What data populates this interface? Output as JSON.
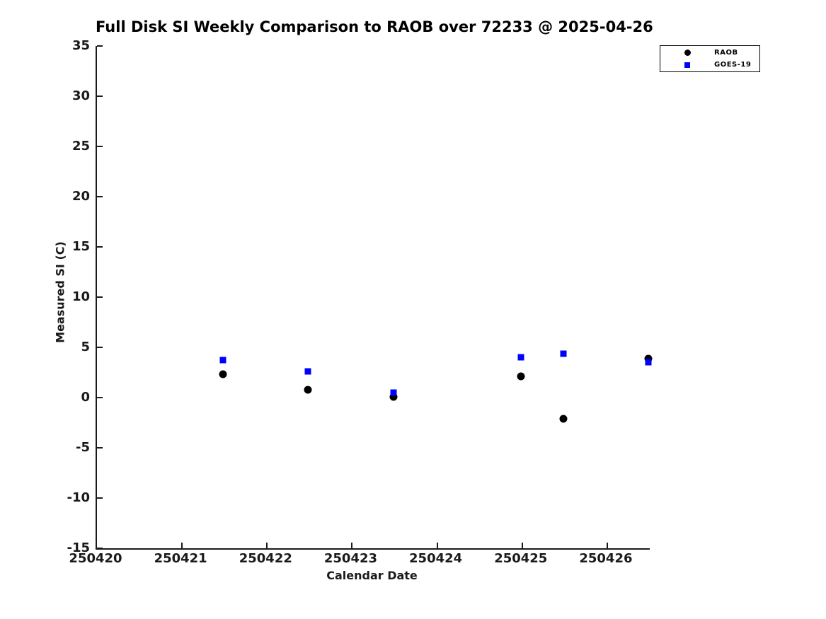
{
  "chart_data": {
    "type": "scatter",
    "title": "Full Disk SI Weekly Comparison to RAOB over 72233 @ 2025-04-26",
    "xlabel": "Calendar Date",
    "ylabel": "Measured SI (C)",
    "xlim": [
      250420,
      250426.5
    ],
    "ylim": [
      -15,
      35
    ],
    "xticks": [
      250420,
      250421,
      250422,
      250423,
      250424,
      250425,
      250426
    ],
    "xtick_labels": [
      "250420",
      "250421",
      "250422",
      "250423",
      "250424",
      "250425",
      "250426"
    ],
    "yticks": [
      35,
      30,
      25,
      20,
      15,
      10,
      5,
      0,
      -5,
      -10,
      -15
    ],
    "ytick_labels": [
      "35",
      "30",
      "25",
      "20",
      "15",
      "10",
      "5",
      "0",
      "-5",
      "-10",
      "-15"
    ],
    "grid": false,
    "legend_position": "top-right",
    "series": [
      {
        "name": "RAOB",
        "marker": "circle",
        "color": "#000000",
        "x": [
          250421.5,
          250422.5,
          250423.5,
          250425.0,
          250425.5,
          250426.5
        ],
        "y": [
          2.3,
          0.8,
          0.1,
          2.1,
          -2.1,
          3.9
        ]
      },
      {
        "name": "GOES-19",
        "marker": "square",
        "color": "#0000ff",
        "x": [
          250421.5,
          250422.5,
          250423.5,
          250425.0,
          250425.5,
          250426.5
        ],
        "y": [
          3.7,
          2.6,
          0.5,
          4.0,
          4.4,
          3.5
        ]
      }
    ]
  },
  "colors": {
    "background": "#ffffff",
    "axis": "#1a1a1a",
    "title_text": "#000000",
    "raob": "#000000",
    "goes19": "#0000ff"
  }
}
